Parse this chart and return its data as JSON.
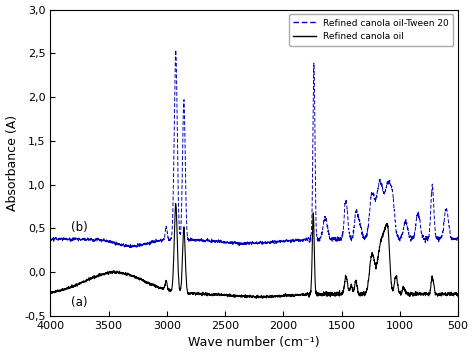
{
  "xlabel": "Wave number (cm⁻¹)",
  "ylabel": "Absorbance (A)",
  "xlim": [
    4000,
    500
  ],
  "ylim": [
    -0.5,
    3.0
  ],
  "yticks": [
    -0.5,
    0.0,
    0.5,
    1.0,
    1.5,
    2.0,
    2.5,
    3.0
  ],
  "xticks": [
    4000,
    3500,
    3000,
    2500,
    2000,
    1500,
    1000,
    500
  ],
  "legend_entries": [
    "Refined canola oil-Tween 20",
    "Refined canola oil"
  ],
  "legend_colors": [
    "#0000bb",
    "#000000"
  ],
  "label_a": "(a)",
  "label_b": "(b)",
  "line_color_a": "#000000",
  "line_color_b": "#0000bb"
}
